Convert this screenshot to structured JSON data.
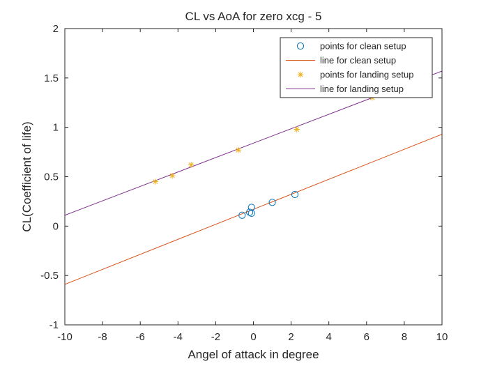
{
  "chart_data": {
    "type": "scatter",
    "title": "CL vs AoA for zero xcg - 5",
    "xlabel": "Angel of attack in degree",
    "ylabel": "CL(Coefficient of life)",
    "xlim": [
      -10,
      10
    ],
    "ylim": [
      -1,
      2
    ],
    "xticks": [
      -10,
      -8,
      -6,
      -4,
      -2,
      0,
      2,
      4,
      6,
      8,
      10
    ],
    "yticks": [
      -1,
      -0.5,
      0,
      0.5,
      1,
      1.5,
      2
    ],
    "grid": false,
    "legend_position": "top-right",
    "series": [
      {
        "name": "points for clean setup",
        "kind": "points",
        "marker": "circle",
        "color": "#0072BD",
        "x": [
          -0.6,
          -0.2,
          -0.1,
          -0.1,
          1.0,
          2.2
        ],
        "y": [
          0.11,
          0.14,
          0.13,
          0.19,
          0.24,
          0.32
        ]
      },
      {
        "name": "line for clean setup",
        "kind": "line",
        "color": "#D95319",
        "x": [
          -10,
          10
        ],
        "y": [
          -0.59,
          0.93
        ]
      },
      {
        "name": "points for landing setup",
        "kind": "points",
        "marker": "asterisk",
        "color": "#EDB120",
        "x": [
          -5.2,
          -4.3,
          -3.3,
          -0.8,
          2.3,
          6.3
        ],
        "y": [
          0.45,
          0.51,
          0.62,
          0.77,
          0.98,
          1.3
        ]
      },
      {
        "name": "line for landing setup",
        "kind": "line",
        "color": "#7E2F8E",
        "x": [
          -10,
          10
        ],
        "y": [
          0.11,
          1.57
        ]
      }
    ]
  }
}
